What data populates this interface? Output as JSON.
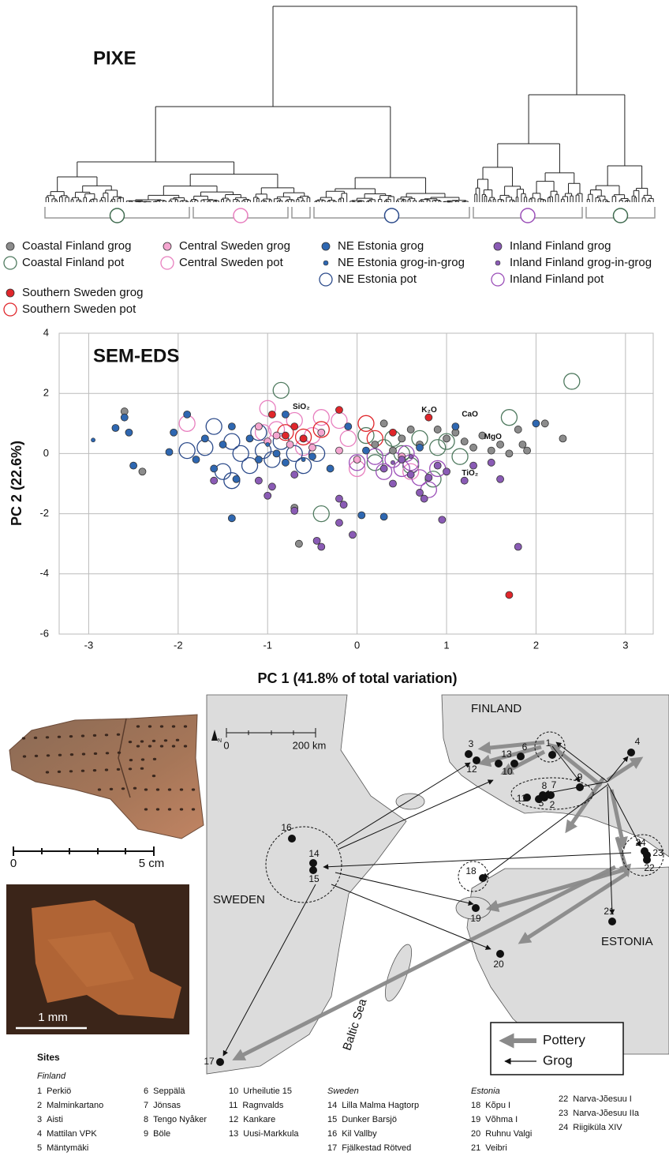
{
  "dendrogram": {
    "title": "PIXE"
  },
  "chart_data": {
    "type": "scatter",
    "title": "SEM-EDS",
    "x_label": "PC 1 (41.8% of total variation)",
    "y_label": "PC 2 (22.6%)",
    "xlim": [
      -3.33,
      3.31
    ],
    "ylim": [
      -6,
      4
    ],
    "xticks": [
      -3,
      -2,
      -1,
      0,
      1,
      2,
      3
    ],
    "yticks": [
      -6,
      -4,
      -2,
      0,
      2,
      4
    ],
    "grid": true,
    "annotations": [
      "SiO₂",
      "K₂O",
      "CaO",
      "MgO",
      "TiO₂"
    ],
    "series": [
      {
        "name": "Coastal Finland grog",
        "color": "#8c8c8c",
        "marker": "filled",
        "x": [
          -2.6,
          -2.4,
          -0.7,
          -0.65,
          0.3,
          0.5,
          0.6,
          0.7,
          0.9,
          1.0,
          1.1,
          1.2,
          1.3,
          1.4,
          1.5,
          1.6,
          1.7,
          1.8,
          1.85,
          1.9,
          2.1,
          2.3,
          0.2,
          0.4
        ],
        "values": [
          1.4,
          -0.6,
          -1.8,
          -3.0,
          1.0,
          0.5,
          0.8,
          0.3,
          0.8,
          0.5,
          0.7,
          0.4,
          0.2,
          0.6,
          0.1,
          0.3,
          0.0,
          0.8,
          0.3,
          0.1,
          1.0,
          0.5,
          0.3,
          0.1
        ]
      },
      {
        "name": "Coastal Finland pot",
        "color": "#4f7a5f",
        "marker": "open",
        "x": [
          -0.85,
          2.4,
          1.7,
          -0.4,
          0.85,
          0.1,
          0.3,
          0.5,
          0.7,
          0.9,
          1.0,
          1.15,
          0.6,
          0.2,
          0.4
        ],
        "values": [
          2.1,
          2.4,
          1.2,
          -2.0,
          -0.85,
          0.6,
          0.2,
          0.0,
          0.5,
          0.2,
          0.4,
          -0.1,
          -0.4,
          -0.3,
          0.5
        ]
      },
      {
        "name": "Central Sweden grog",
        "color": "#f4a6d0",
        "marker": "filled",
        "x": [
          -1.1,
          -1.0,
          -0.9,
          -0.75,
          -0.6,
          -0.5,
          -0.4,
          0.0,
          -0.2,
          0.5
        ],
        "values": [
          0.9,
          0.4,
          0.6,
          0.3,
          0.5,
          0.2,
          0.7,
          -0.2,
          0.1,
          -0.1
        ]
      },
      {
        "name": "Central Sweden pot",
        "color": "#e87fbf",
        "marker": "open",
        "x": [
          -1.9,
          -1.0,
          -0.9,
          -0.7,
          -0.5,
          -0.4,
          -0.2,
          -0.1,
          0.0,
          0.6,
          -0.6,
          -1.05
        ],
        "values": [
          1.0,
          1.5,
          0.8,
          1.1,
          0.6,
          1.2,
          1.1,
          0.5,
          -0.5,
          -0.6,
          0.2,
          0.7
        ]
      },
      {
        "name": "NE Estonia grog",
        "color": "#2e67b1",
        "marker": "filled",
        "x": [
          -2.6,
          -2.55,
          -2.7,
          -2.5,
          -1.9,
          -2.05,
          -2.1,
          -1.8,
          -1.7,
          -1.6,
          -1.5,
          -1.4,
          -1.35,
          -1.4,
          -1.2,
          -1.1,
          -0.9,
          -0.8,
          -0.5,
          -0.3,
          0.05,
          0.3,
          0.1,
          0.7,
          1.1,
          2.0,
          -0.8,
          -0.1
        ],
        "values": [
          1.2,
          0.7,
          0.85,
          -0.4,
          1.3,
          0.7,
          0.05,
          -0.2,
          0.5,
          -0.5,
          0.3,
          0.9,
          -0.85,
          -2.15,
          0.5,
          -0.2,
          0.0,
          -0.3,
          -0.1,
          -0.5,
          -2.05,
          -2.1,
          0.1,
          0.2,
          0.9,
          1.0,
          1.3,
          0.9
        ]
      },
      {
        "name": "NE Estonia grog-in-grog",
        "color": "#2e67b1",
        "marker": "small",
        "x": [
          -2.95,
          -1.0,
          -0.6
        ],
        "values": [
          0.45,
          0.3,
          -0.2
        ]
      },
      {
        "name": "NE Estonia pot",
        "color": "#2b4a8a",
        "marker": "open",
        "x": [
          -1.6,
          -1.7,
          -1.5,
          -1.4,
          -1.3,
          -1.2,
          -1.1,
          -1.05,
          -0.95,
          -1.9,
          -0.85,
          -0.7,
          -0.6,
          -0.45,
          -1.4
        ],
        "values": [
          0.9,
          0.2,
          -0.6,
          0.4,
          0.0,
          -0.4,
          0.7,
          0.1,
          -0.2,
          0.1,
          0.4,
          0.0,
          -0.4,
          0.0,
          -0.9
        ]
      },
      {
        "name": "Inland Finland grog",
        "color": "#8a5bb5",
        "marker": "filled",
        "x": [
          -1.6,
          -1.1,
          -1.0,
          -0.95,
          -0.7,
          -0.7,
          -0.45,
          -0.4,
          -0.2,
          -0.15,
          -0.05,
          -0.2,
          0.3,
          0.4,
          0.5,
          0.6,
          0.7,
          0.75,
          0.8,
          0.9,
          0.95,
          1.0,
          1.2,
          1.3,
          1.6,
          1.8,
          1.5
        ],
        "values": [
          -0.9,
          -0.9,
          -1.4,
          -1.1,
          -1.9,
          -0.7,
          -2.9,
          -3.1,
          -1.5,
          -1.7,
          -2.7,
          -2.3,
          -0.5,
          -1.0,
          -0.2,
          -0.7,
          -1.3,
          -1.5,
          -0.8,
          -0.4,
          -2.2,
          -0.6,
          -0.9,
          -0.4,
          -0.85,
          -3.1,
          -0.3
        ]
      },
      {
        "name": "Inland Finland grog-in-grog",
        "color": "#8a5bb5",
        "marker": "small",
        "x": [
          0.4,
          0.6
        ],
        "values": [
          -0.3,
          -0.1
        ]
      },
      {
        "name": "Inland Finland pot",
        "color": "#9b4fb8",
        "marker": "open",
        "x": [
          0.0,
          0.3,
          0.4,
          0.5,
          0.6,
          0.7,
          0.8,
          0.9,
          0.2,
          0.55
        ],
        "values": [
          -0.3,
          -0.6,
          -0.2,
          -0.5,
          -0.3,
          -0.8,
          -1.2,
          -0.5,
          -0.1,
          0.0
        ]
      },
      {
        "name": "Southern Sweden grog",
        "color": "#e0262b",
        "marker": "filled",
        "x": [
          -0.95,
          -0.8,
          -0.7,
          -0.2,
          0.4,
          0.8,
          1.7,
          -0.6
        ],
        "values": [
          1.3,
          0.6,
          0.9,
          1.45,
          0.7,
          1.2,
          -4.7,
          0.5
        ]
      },
      {
        "name": "Southern Sweden pot",
        "color": "#e0262b",
        "marker": "open",
        "x": [
          -0.8,
          -0.4,
          0.1,
          -0.6,
          0.2
        ],
        "values": [
          0.7,
          0.8,
          1.0,
          0.55,
          0.5
        ]
      }
    ]
  },
  "photos": {
    "sherd_scale": [
      "0",
      "5 cm"
    ],
    "micro_scale": "1 mm"
  },
  "map": {
    "countries": [
      "FINLAND",
      "SWEDEN",
      "ESTONIA"
    ],
    "sea": "Baltic Sea",
    "scale": [
      "0",
      "200 km"
    ],
    "north": "N",
    "legend": [
      "Pottery",
      "Grog"
    ]
  },
  "sites": {
    "title": "Sites",
    "groups": [
      {
        "name": "Finland",
        "items": [
          {
            "number": 1,
            "name": "Perkiö"
          },
          {
            "number": 2,
            "name": "Malminkartano"
          },
          {
            "number": 3,
            "name": "Aisti"
          },
          {
            "number": 4,
            "name": "Mattilan VPK"
          },
          {
            "number": 5,
            "name": "Mäntymäki"
          },
          {
            "number": 6,
            "name": "Seppälä"
          },
          {
            "number": 7,
            "name": "Jönsas"
          },
          {
            "number": 8,
            "name": "Tengo Nyåker"
          },
          {
            "number": 9,
            "name": "Böle"
          },
          {
            "number": 10,
            "name": "Urheilutie 15"
          },
          {
            "number": 11,
            "name": "Ragnvalds"
          },
          {
            "number": 12,
            "name": "Kankare"
          },
          {
            "number": 13,
            "name": "Uusi-Markkula"
          }
        ]
      },
      {
        "name": "Sweden",
        "items": [
          {
            "number": 14,
            "name": "Lilla Malma Hagtorp"
          },
          {
            "number": 15,
            "name": "Dunker Barsjö"
          },
          {
            "number": 16,
            "name": "Kil Vallby"
          },
          {
            "number": 17,
            "name": "Fjälkestad Rötved"
          }
        ]
      },
      {
        "name": "Estonia",
        "items": [
          {
            "number": 18,
            "name": "Kõpu I"
          },
          {
            "number": 19,
            "name": "Võhma I"
          },
          {
            "number": 20,
            "name": "Ruhnu Valgi"
          },
          {
            "number": 21,
            "name": "Veibri"
          },
          {
            "number": 22,
            "name": "Narva-Jõesuu I"
          },
          {
            "number": 23,
            "name": "Narva-Jõesuu IIa"
          },
          {
            "number": 24,
            "name": "Riigiküla XIV"
          }
        ]
      }
    ]
  }
}
